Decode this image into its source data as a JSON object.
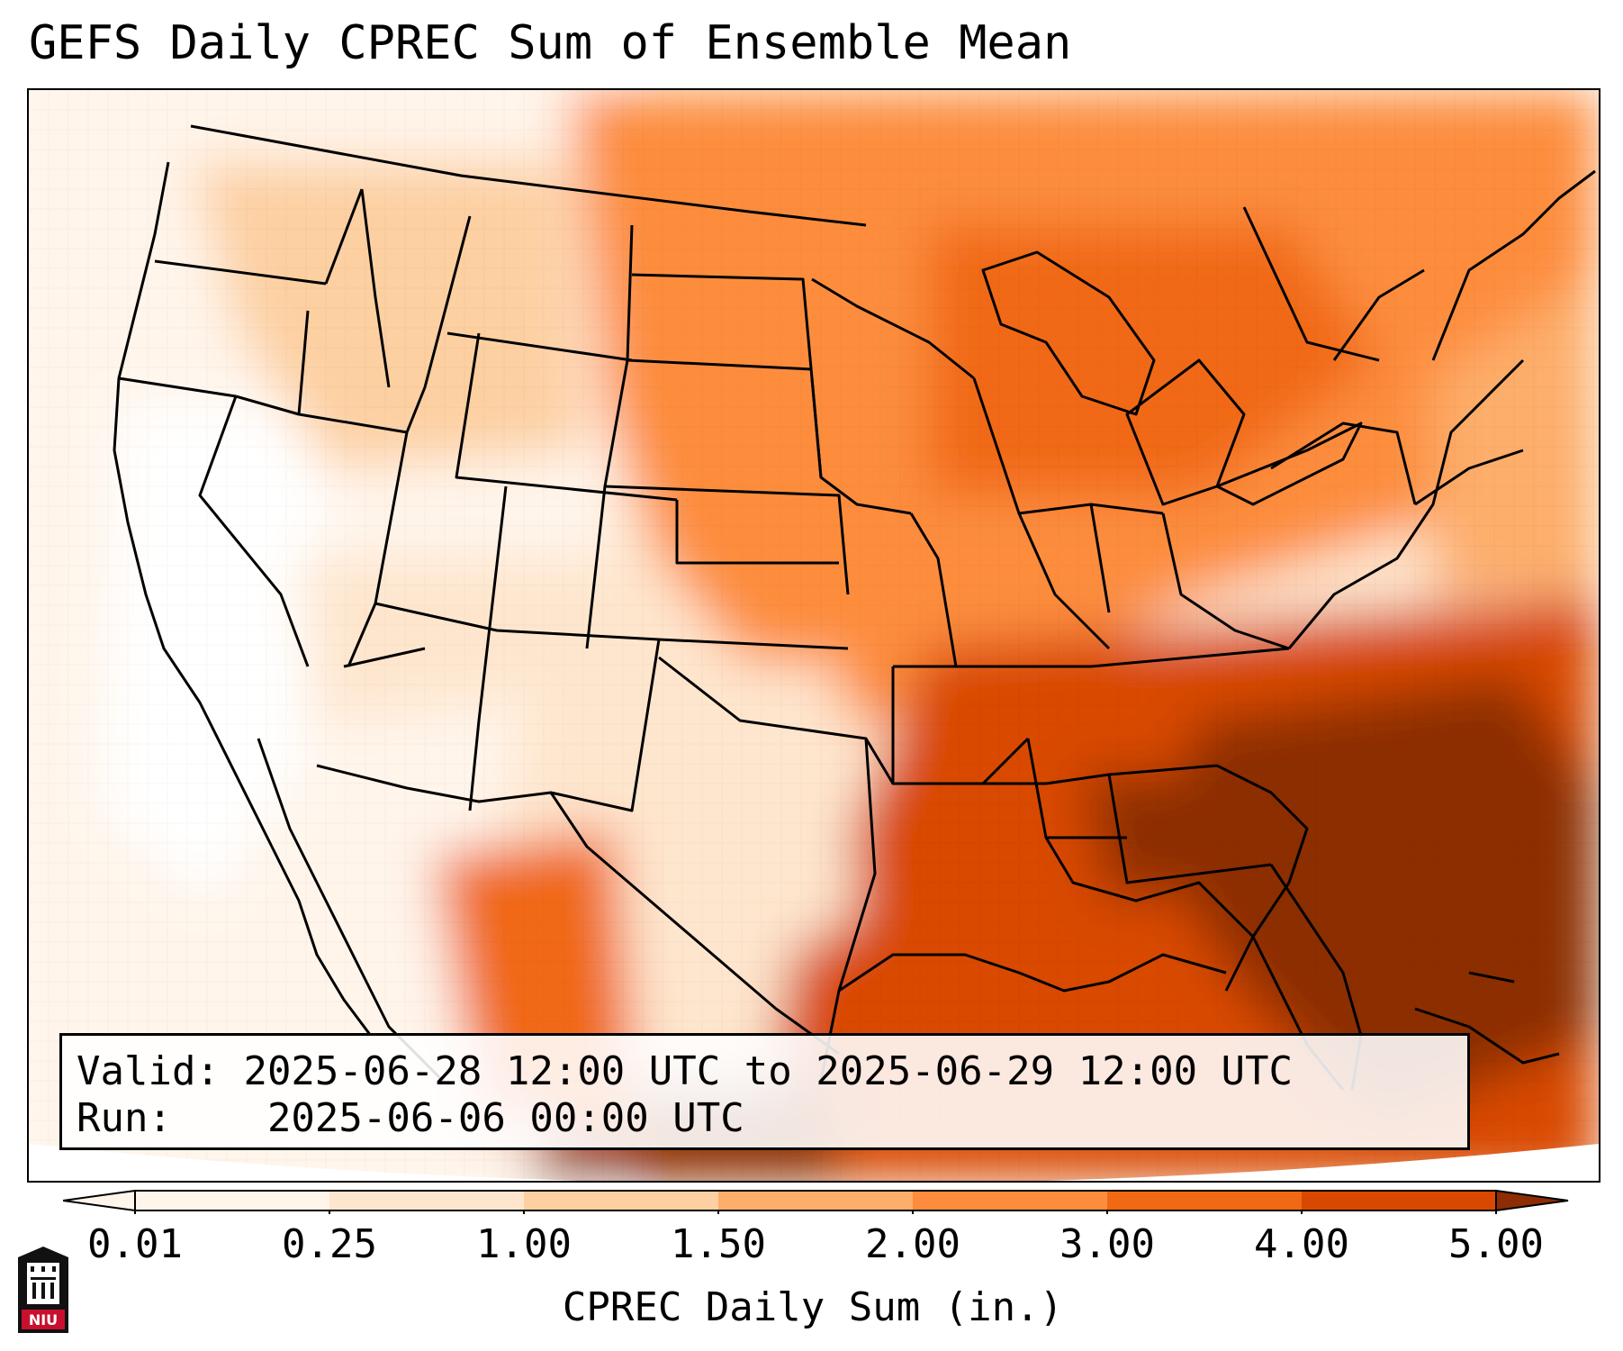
{
  "title": "GEFS Daily CPREC Sum of Ensemble Mean",
  "info": {
    "valid_label": "Valid:",
    "valid_value": "2025-06-28 12:00 UTC to 2025-06-29 12:00 UTC",
    "run_label": "Run:",
    "run_value": "2025-06-06 00:00 UTC"
  },
  "colorbar": {
    "ticks": [
      "0.01",
      "0.25",
      "1.00",
      "1.50",
      "2.00",
      "3.00",
      "4.00",
      "5.00"
    ],
    "label": "CPREC Daily Sum (in.)",
    "colors": [
      "#fff5eb",
      "#fee6ce",
      "#fdd0a2",
      "#fdae6b",
      "#fd8d3c",
      "#f16913",
      "#d94801",
      "#8c2d04"
    ],
    "extend": "both"
  },
  "logo": {
    "text": "NIU",
    "color": "#c8102e"
  },
  "colors": {
    "ocean_high": "#d94801",
    "land_dry": "#ffffff",
    "boundary": "#000000"
  }
}
